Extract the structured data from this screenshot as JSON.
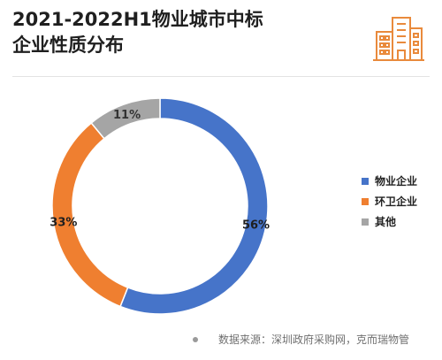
{
  "header": {
    "title_line1": "2021-2022H1物业城市中标",
    "title_line2": "企业性质分布",
    "icon": "buildings-icon",
    "icon_color": "#e98a3c"
  },
  "chart_data": {
    "type": "pie",
    "style": "donut",
    "categories": [
      "物业企业",
      "环卫企业",
      "其他"
    ],
    "values": [
      56,
      33,
      11
    ],
    "unit": "%",
    "data_labels": [
      "56%",
      "33%",
      "11%"
    ],
    "colors": [
      "#4674c9",
      "#ef7f30",
      "#a5a5a5"
    ],
    "legend_position": "right"
  },
  "footer": {
    "source_text": "数据来源：深圳政府采购网，克而瑞物管"
  }
}
